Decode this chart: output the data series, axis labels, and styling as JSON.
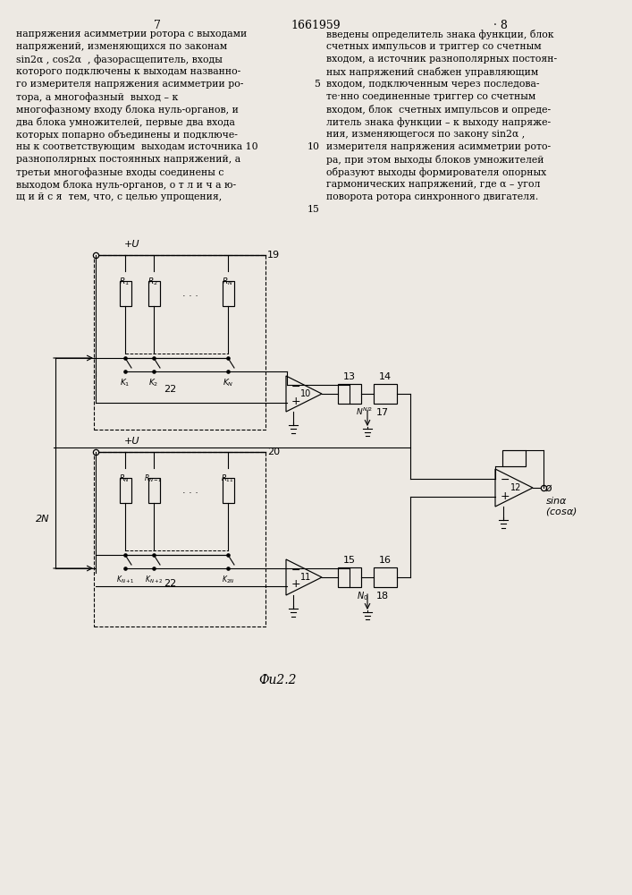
{
  "page_num_left": "7",
  "page_num_center": "1661959",
  "page_num_right": "· 8",
  "text_left": [
    "напряжения асимметрии ротора с выходами",
    "напряжений, изменяющихся по законам",
    "sin2α , cos2α  , фазорасщепитель, входы",
    "которого подключены к выходам названно-",
    "го измерителя напряжения асимметрии ро-",
    "тора, а многофазный  выход – к",
    "многофазному входу блока нуль-органов, и",
    "два блока умножителей, первые два входа",
    "которых попарно объединены и подключе-",
    "ны к соответствующим  выходам источника 10",
    "разнополярных постоянных напряжений, а",
    "третьи многофазные входы соединены с",
    "выходом блока нуль-органов, о т л и ч а ю-",
    "щ и й с я  тем, что, с целью упрощения,"
  ],
  "text_right": [
    "введены определитель знака функции, блок",
    "счетных импульсов и триггер со счетным",
    "входом, а источник разнополярных постоян-",
    "ных напряжений снабжен управляющим",
    "входом, подключенным через последова-",
    "те·нно соединенные триггер со счетным",
    "входом, блок  счетных импульсов и опреде-",
    "литель знака функции – к выходу напряже-",
    "ния, изменяющегося по закону sin2α ,",
    "измерителя напряжения асимметрии рото-",
    "ра, при этом выходы блоков умножителей",
    "образуют выходы формирователя опорных",
    "гармонических напряжений, где α – угол",
    "поворота ротора синхронного двигателя."
  ],
  "line_num_5": "5",
  "line_num_10": "10",
  "line_num_15": "15",
  "fig_label": "Фu2.2",
  "bg_color": "#ede9e3"
}
